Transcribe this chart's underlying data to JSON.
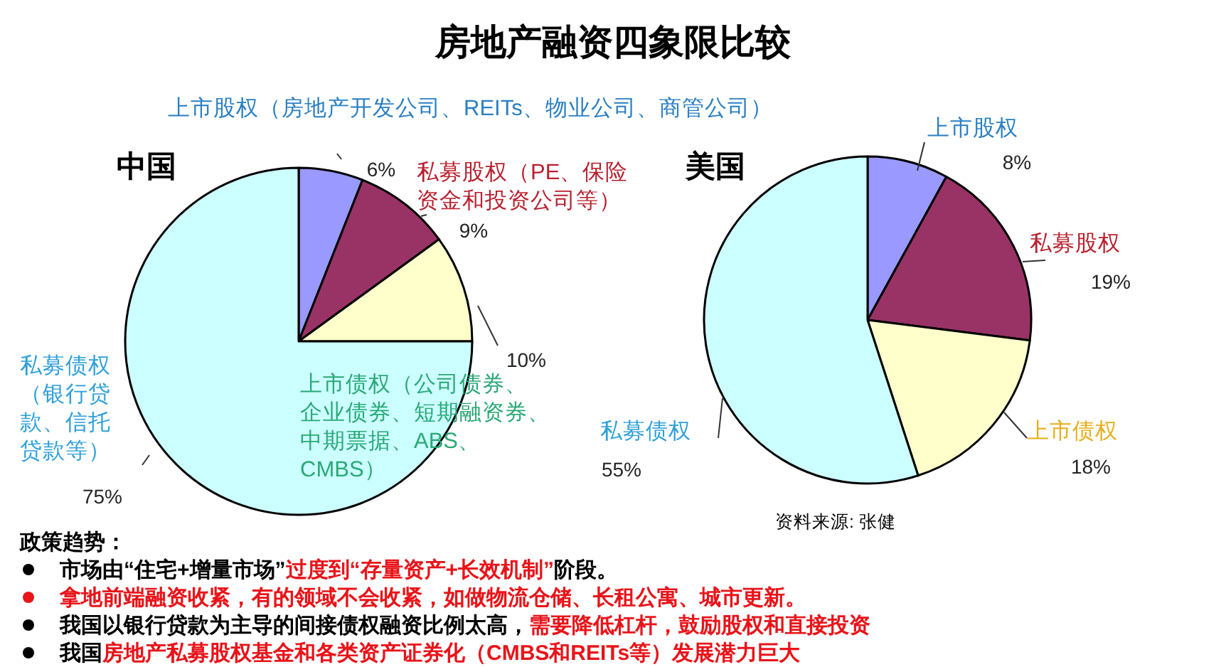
{
  "chart_data": [
    {
      "type": "other",
      "title": "房地产融资四象限比较",
      "annotations": [
        "政策趋势：",
        "市场由“住宅+增量市场”",
        "过度到“存量资产+长效机制”",
        "阶段。",
        "拿地前端融资收紧，有的领域不会收紧，如做物流仓储、长租公寓、城市更新。",
        "我国以银行贷款为主导的间接债权融资比例太高，",
        "需要降低杠杆，鼓励股权和直接投资",
        "我国",
        "房地产私募股权基金和各类资产证券化（CMBS和REITs等）发展潜力巨大"
      ]
    },
    {
      "type": "pie",
      "title": "中国",
      "categories": [
        "上市股权（房地产开发公司、REITs、物业公司、商管公司）",
        "私募股权（PE、保险资金和投资公司等）",
        "上市债权（公司债券、企业债券、短期融资券、中期票据、ABS、CMBS）",
        "私募债权（银行贷款、信托贷款等）"
      ],
      "values": [
        6,
        9,
        10,
        75
      ],
      "colors": [
        "#9999ff",
        "#993366",
        "#ffffcc",
        "#ccffff"
      ],
      "value_labels": [
        "6%",
        "9%",
        "10%",
        "75%"
      ]
    },
    {
      "type": "pie",
      "title": "美国",
      "categories": [
        "上市股权",
        "私募股权",
        "上市债权",
        "私募债权"
      ],
      "values": [
        8,
        19,
        18,
        55
      ],
      "colors": [
        "#9999ff",
        "#993366",
        "#ffffcc",
        "#ccffff"
      ],
      "value_labels": [
        "8%",
        "19%",
        "18%",
        "55%"
      ],
      "annotations": [
        "资料来源: 张健"
      ]
    }
  ]
}
